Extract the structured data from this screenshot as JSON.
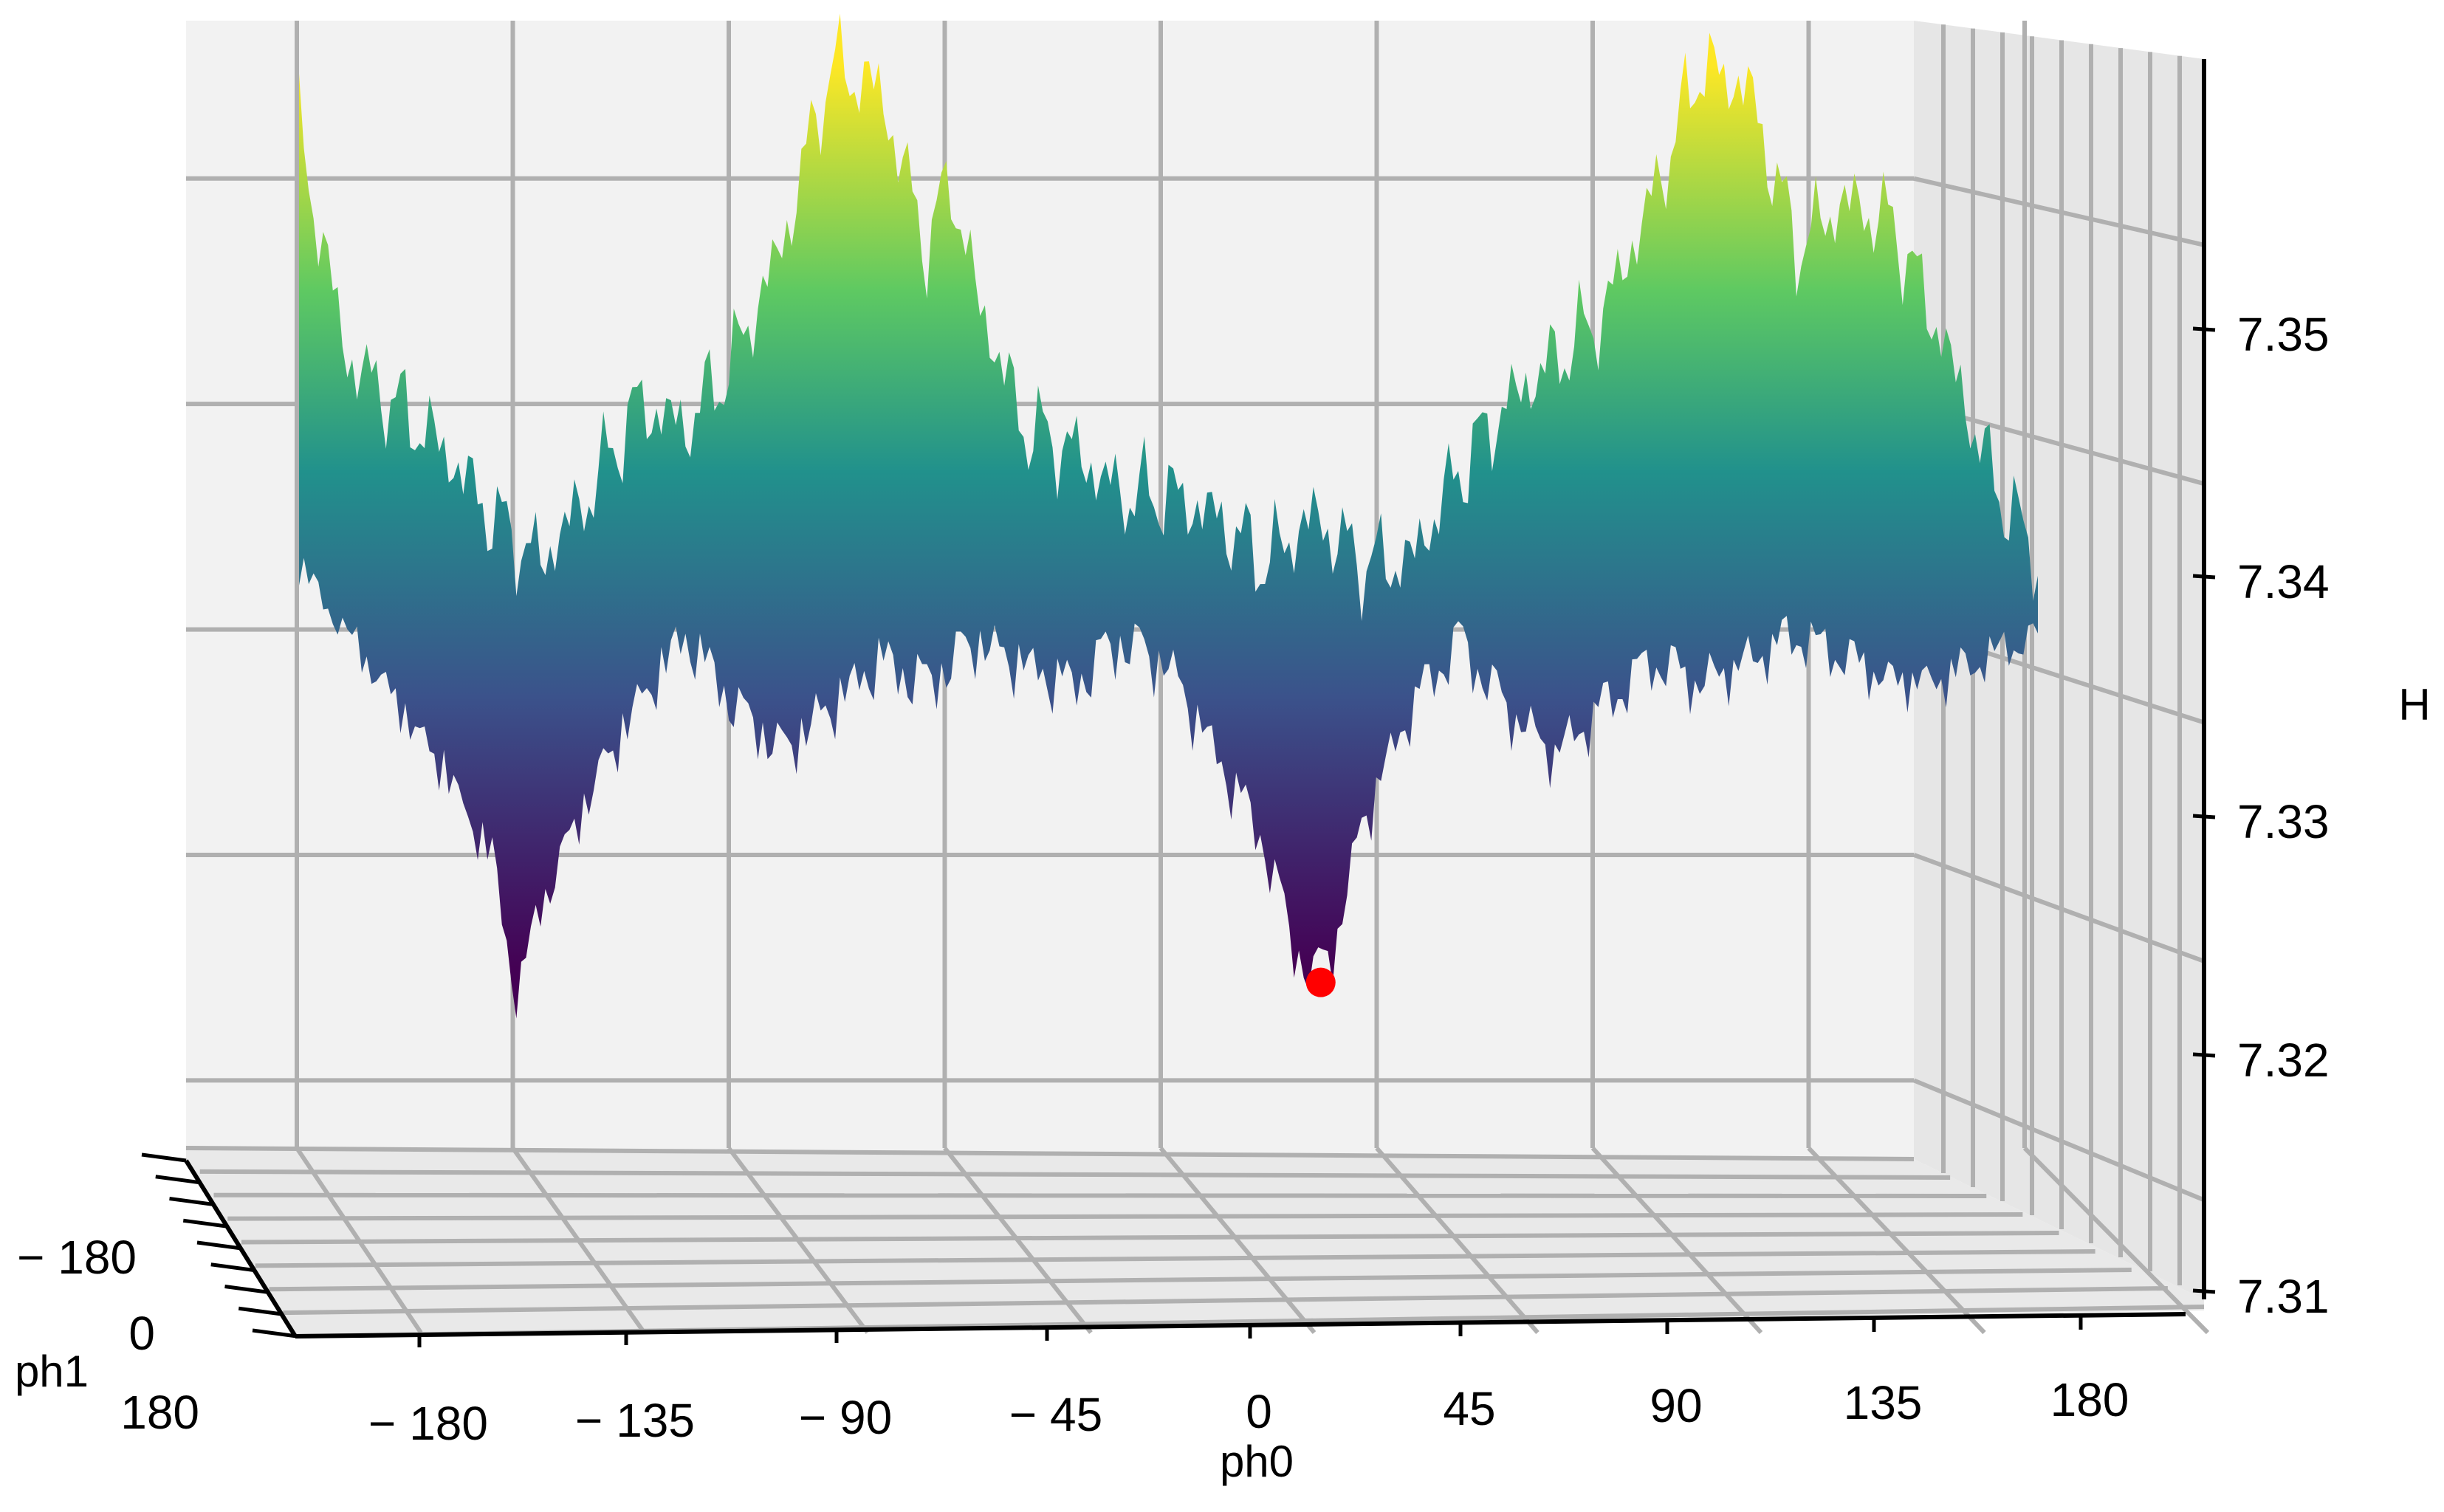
{
  "chart_data": {
    "type": "surface3d",
    "title": "",
    "xlabel": "ph0",
    "ylabel": "ph1",
    "zlabel": "H",
    "x_ticks": [
      "− 180",
      "− 135",
      "− 90",
      "− 45",
      "0",
      "45",
      "90",
      "135",
      "180"
    ],
    "y_ticks": [
      "− 180",
      "0",
      "180"
    ],
    "z_ticks": [
      "7.31",
      "7.32",
      "7.33",
      "7.34",
      "7.35"
    ],
    "xlim": [
      -180,
      180
    ],
    "ylim": [
      -180,
      180
    ],
    "zlim": [
      7.31,
      7.36
    ],
    "colormap": "viridis",
    "grid": true,
    "front_profile": {
      "ph0": [
        -180,
        -170,
        -160,
        -150,
        -140,
        -135,
        -130,
        -120,
        -110,
        -100,
        -90,
        -80,
        -70,
        -60,
        -50,
        -45,
        -40,
        -30,
        -20,
        -10,
        0,
        10,
        20,
        25,
        30,
        35,
        40,
        50,
        60,
        70,
        80,
        90,
        100,
        110,
        120,
        130,
        140,
        150,
        160,
        170,
        180
      ],
      "H": [
        7.337,
        7.334,
        7.331,
        7.328,
        7.324,
        7.318,
        7.322,
        7.327,
        7.331,
        7.334,
        7.331,
        7.329,
        7.331,
        7.333,
        7.332,
        7.333,
        7.334,
        7.333,
        7.332,
        7.334,
        7.333,
        7.329,
        7.325,
        7.321,
        7.319,
        7.321,
        7.326,
        7.331,
        7.334,
        7.331,
        7.329,
        7.331,
        7.333,
        7.332,
        7.333,
        7.334,
        7.333,
        7.332,
        7.332,
        7.333,
        7.334
      ]
    },
    "ridge_profile": {
      "ph0": [
        -180,
        -170,
        -160,
        -150,
        -140,
        -130,
        -120,
        -110,
        -100,
        -90,
        -80,
        -70,
        -60,
        -50,
        -45,
        -40,
        -30,
        -20,
        -10,
        0,
        10,
        20,
        30,
        40,
        50,
        60,
        70,
        80,
        90,
        100,
        110,
        120,
        130,
        140,
        150,
        160,
        170,
        180
      ],
      "H": [
        7.355,
        7.345,
        7.343,
        7.341,
        7.338,
        7.336,
        7.339,
        7.343,
        7.342,
        7.345,
        7.35,
        7.358,
        7.357,
        7.35,
        7.353,
        7.348,
        7.342,
        7.341,
        7.339,
        7.339,
        7.338,
        7.336,
        7.338,
        7.336,
        7.336,
        7.34,
        7.343,
        7.345,
        7.347,
        7.352,
        7.358,
        7.357,
        7.35,
        7.352,
        7.351,
        7.346,
        7.34,
        7.336
      ]
    },
    "highlighted_point": {
      "ph0": 30,
      "ph1": 180,
      "H": 7.318,
      "color": "#ff0000"
    }
  }
}
